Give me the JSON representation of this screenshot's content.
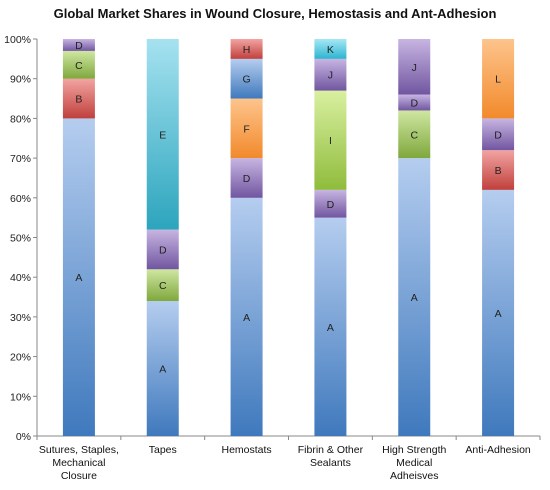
{
  "chart_data": {
    "type": "bar",
    "stacked": true,
    "title": "Global Market Shares in Wound Closure, Hemostasis and Ant-Adhesion",
    "xlabel": "",
    "ylabel": "",
    "ylim": [
      0,
      100
    ],
    "yticks": [
      "0%",
      "10%",
      "20%",
      "30%",
      "40%",
      "50%",
      "60%",
      "70%",
      "80%",
      "90%",
      "100%"
    ],
    "grid": false,
    "legend": "none",
    "categories": [
      [
        "Sutures, Staples,",
        "Mechanical",
        "Closure"
      ],
      [
        "Tapes"
      ],
      [
        "Hemostats"
      ],
      [
        "Fibrin & Other",
        "Sealants"
      ],
      [
        "High Strength",
        "Medical",
        "Adheisves"
      ],
      [
        "Anti-Adhesion"
      ]
    ],
    "series_colors": {
      "A": [
        "#3f79bd",
        "#b5cdef"
      ],
      "B": [
        "#c0403c",
        "#f2a4a2"
      ],
      "C": [
        "#7fa83c",
        "#cfe6a2"
      ],
      "D": [
        "#7156a0",
        "#c7b5e2"
      ],
      "E": [
        "#2ca5bd",
        "#a6e2f0"
      ],
      "F": [
        "#f28a2c",
        "#fdc48c"
      ],
      "G": [
        "#3f79bd",
        "#b5cdef"
      ],
      "H": [
        "#c0403c",
        "#f2a4a2"
      ],
      "I": [
        "#8fbc3c",
        "#d9f0a0"
      ],
      "J": [
        "#7156a0",
        "#c7b5e2"
      ],
      "K": [
        "#2cb4cf",
        "#a6e8f5"
      ],
      "L": [
        "#f28a2c",
        "#fdc48c"
      ]
    },
    "stacks": [
      [
        {
          "label": "A",
          "value": 80
        },
        {
          "label": "B",
          "value": 10
        },
        {
          "label": "C",
          "value": 7
        },
        {
          "label": "D",
          "value": 3
        }
      ],
      [
        {
          "label": "A",
          "value": 34
        },
        {
          "label": "C",
          "value": 8
        },
        {
          "label": "D",
          "value": 10
        },
        {
          "label": "E",
          "value": 48
        }
      ],
      [
        {
          "label": "A",
          "value": 60
        },
        {
          "label": "D",
          "value": 10
        },
        {
          "label": "F",
          "value": 15
        },
        {
          "label": "G",
          "value": 10
        },
        {
          "label": "H",
          "value": 5
        }
      ],
      [
        {
          "label": "A",
          "value": 55
        },
        {
          "label": "D",
          "value": 7
        },
        {
          "label": "I",
          "value": 25
        },
        {
          "label": "J",
          "value": 8
        },
        {
          "label": "K",
          "value": 5
        }
      ],
      [
        {
          "label": "A",
          "value": 70
        },
        {
          "label": "C",
          "value": 12
        },
        {
          "label": "D",
          "value": 4
        },
        {
          "label": "J",
          "value": 14
        }
      ],
      [
        {
          "label": "A",
          "value": 62
        },
        {
          "label": "B",
          "value": 10
        },
        {
          "label": "D",
          "value": 8
        },
        {
          "label": "L",
          "value": 20
        }
      ]
    ]
  }
}
